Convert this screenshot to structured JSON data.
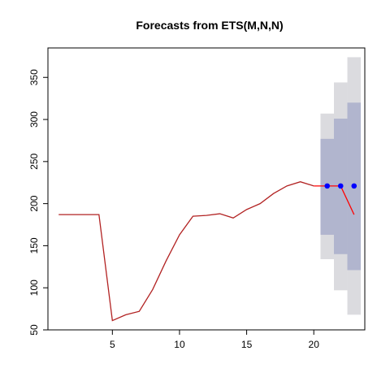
{
  "chart_data": {
    "type": "line",
    "title": "Forecasts from ETS(M,N,N)",
    "xlabel": "",
    "ylabel": "",
    "xlim": [
      0.2,
      23.8
    ],
    "ylim": [
      50,
      385
    ],
    "x_ticks": [
      5,
      10,
      15,
      20
    ],
    "y_ticks": [
      50,
      100,
      150,
      200,
      250,
      300,
      350
    ],
    "grid": false,
    "legend": "none",
    "series": [
      {
        "role": "observed",
        "color": "#b22222",
        "points": [
          [
            1,
            187
          ],
          [
            2,
            187
          ],
          [
            3,
            187
          ],
          [
            4,
            187
          ],
          [
            5,
            61
          ],
          [
            6,
            68
          ],
          [
            7,
            72
          ],
          [
            8,
            98
          ],
          [
            9,
            132
          ],
          [
            10,
            163
          ],
          [
            11,
            185
          ],
          [
            12,
            186
          ],
          [
            13,
            188
          ],
          [
            14,
            183
          ],
          [
            15,
            193
          ],
          [
            16,
            200
          ],
          [
            17,
            212
          ],
          [
            18,
            221
          ],
          [
            19,
            226
          ],
          [
            20,
            221
          ]
        ]
      },
      {
        "role": "test",
        "color": "#ff0000",
        "points": [
          [
            20,
            221
          ],
          [
            21,
            221
          ],
          [
            22,
            221
          ],
          [
            23,
            187
          ]
        ]
      },
      {
        "role": "point-forecast",
        "color": "#0000ff",
        "points": [
          [
            21,
            221
          ],
          [
            22,
            221
          ],
          [
            23,
            221
          ]
        ]
      }
    ],
    "intervals": [
      {
        "level": 80,
        "color": "#b1b5ce",
        "bands": [
          {
            "x": 21,
            "lower": 163,
            "upper": 277
          },
          {
            "x": 22,
            "lower": 140,
            "upper": 301
          },
          {
            "x": 23,
            "lower": 121,
            "upper": 320
          }
        ]
      },
      {
        "level": 95,
        "color": "#dbdbdf",
        "bands": [
          {
            "x": 21,
            "lower": 134,
            "upper": 307
          },
          {
            "x": 22,
            "lower": 97,
            "upper": 344
          },
          {
            "x": 23,
            "lower": 68,
            "upper": 374
          }
        ]
      }
    ]
  }
}
